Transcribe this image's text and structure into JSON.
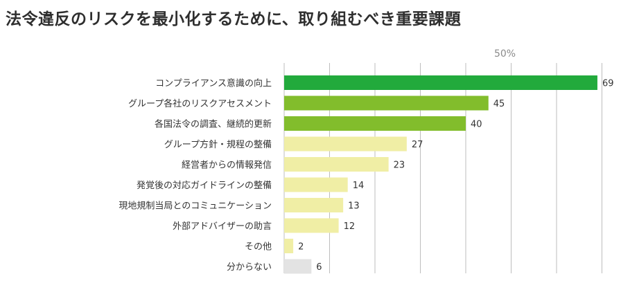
{
  "header": {
    "title": "法令違反のリスクを最小化するために、取り組むべき重要課題"
  },
  "colors": {
    "top": "#22aa3c",
    "high": "#82bd2c",
    "mid": "#f0eea5",
    "unknown": "#e3e3e3",
    "grid": "#bdbdbd",
    "axis_label": "#8a8a8a"
  },
  "chart_data": {
    "type": "bar",
    "orientation": "horizontal",
    "title": "法令違反のリスクを最小化するために、取り組むべき重要課題",
    "axis_label": "50%",
    "axis_label_value": 50,
    "xlim": [
      0,
      70
    ],
    "gridline_step": 10,
    "grid": true,
    "categories": [
      "コンプライアンス意識の向上",
      "グループ各社のリスクアセスメント",
      "各国法令の調査、継続的更新",
      "グループ方針・規程の整備",
      "経営者からの情報発信",
      "発覚後の対応ガイドラインの整備",
      "現地規制当局とのコミュニケーション",
      "外部アドバイザーの助言",
      "その他",
      "分からない"
    ],
    "values": [
      69,
      45,
      40,
      27,
      23,
      14,
      13,
      12,
      2,
      6
    ],
    "value_labels": [
      "69",
      "45",
      "40",
      "27",
      "23",
      "14",
      "13",
      "12",
      "2",
      "6"
    ],
    "color_keys": [
      "top",
      "high",
      "high",
      "mid",
      "mid",
      "mid",
      "mid",
      "mid",
      "mid",
      "unknown"
    ]
  }
}
